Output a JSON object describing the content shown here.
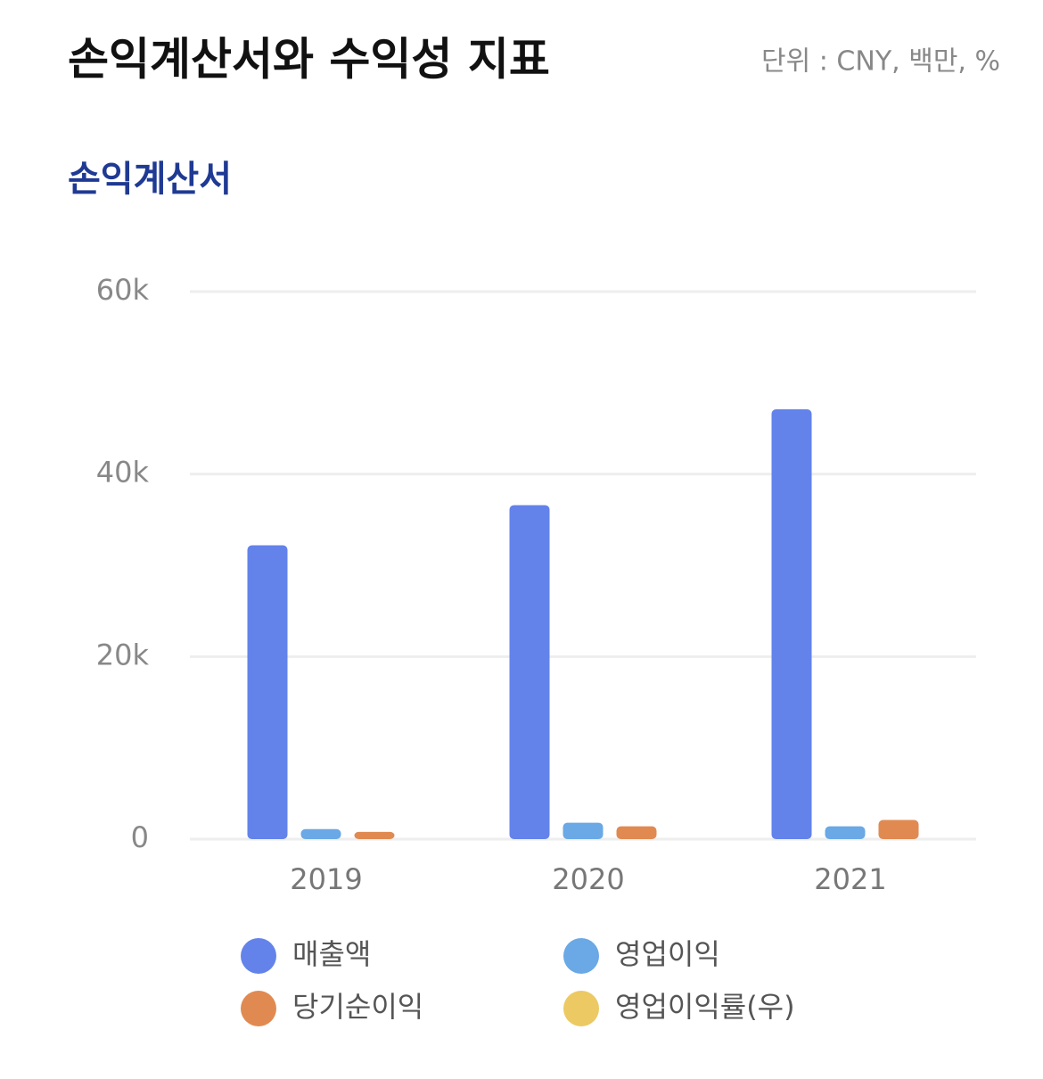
{
  "chart_data": {
    "type": "bar",
    "title": "손익계산서와 수익성 지표",
    "unit_note": "단위 : CNY, 백만, %",
    "subtitle": "손익계산서",
    "categories": [
      "2019",
      "2020",
      "2021"
    ],
    "series": [
      {
        "name": "매출액",
        "color": "#6383ea",
        "values": [
          32200,
          36600,
          47100
        ]
      },
      {
        "name": "영업이익",
        "color": "#6aa8e6",
        "values": [
          1100,
          1800,
          1400
        ]
      },
      {
        "name": "당기순이익",
        "color": "#e08a52",
        "values": [
          800,
          1400,
          2100
        ]
      },
      {
        "name": "영업이익률(우)",
        "color": "#ecc963",
        "values": [
          null,
          null,
          null
        ],
        "axis": "y2"
      }
    ],
    "ylim": [
      0,
      60000
    ],
    "yticks": [
      0,
      {
        "value": 20000,
        "label": "20k"
      },
      {
        "value": 40000,
        "label": "40k"
      },
      {
        "value": 60000,
        "label": "60k"
      }
    ],
    "grid": true
  }
}
